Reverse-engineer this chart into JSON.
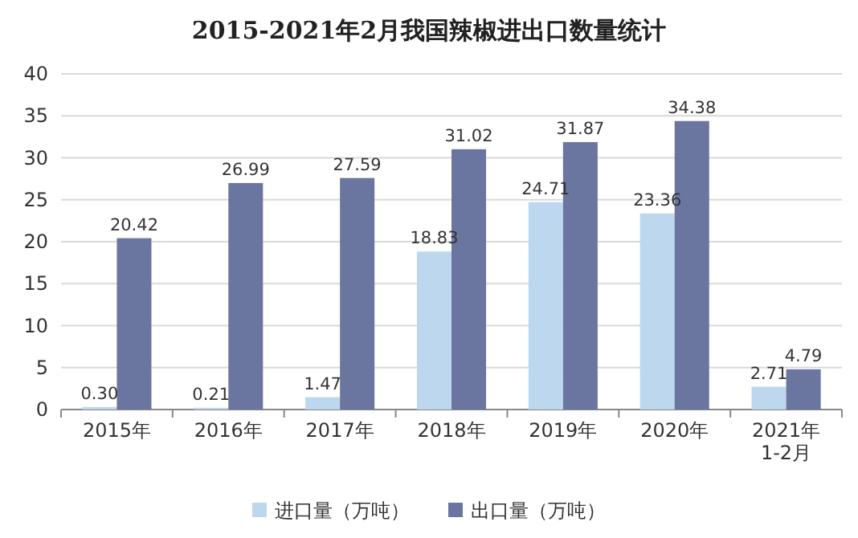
{
  "chart_data": {
    "type": "bar",
    "title": "2015-2021年2月我国辣椒进出口数量统计",
    "categories": [
      "2015年",
      "2016年",
      "2017年",
      "2018年",
      "2019年",
      "2020年",
      "2021年1-2月"
    ],
    "series": [
      {
        "name": "进口量（万吨）",
        "color": "#bdd7ee",
        "values": [
          0.3,
          0.21,
          1.47,
          18.83,
          24.71,
          23.36,
          2.71
        ],
        "value_labels": [
          "0.30",
          "0.21",
          "1.47",
          "18.83",
          "24.71",
          "23.36",
          "2.71"
        ]
      },
      {
        "name": "出口量（万吨）",
        "color": "#6b76a0",
        "values": [
          20.42,
          26.99,
          27.59,
          31.02,
          31.87,
          34.38,
          4.79
        ],
        "value_labels": [
          "20.42",
          "26.99",
          "27.59",
          "31.02",
          "31.87",
          "34.38",
          "4.79"
        ]
      }
    ],
    "ylim": [
      0,
      40
    ],
    "yticks": [
      0,
      5,
      10,
      15,
      20,
      25,
      30,
      35,
      40
    ],
    "grid": "y",
    "legend": "bottom"
  }
}
